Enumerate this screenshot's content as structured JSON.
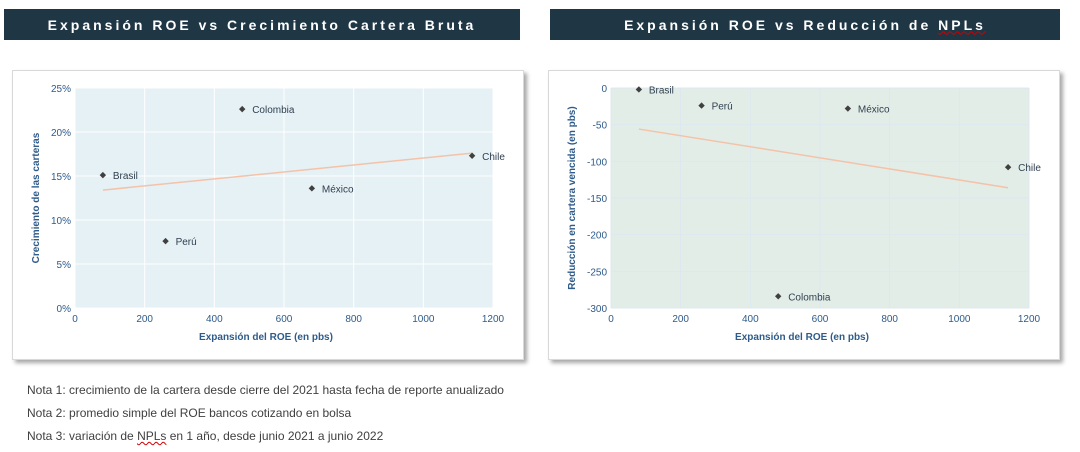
{
  "charts": {
    "left": {
      "title": "Expansión ROE vs Crecimiento Cartera Bruta"
    },
    "right": {
      "title_main": "Expansión ROE vs Reducción de ",
      "title_squiggle": "NPLs"
    }
  },
  "notes": [
    {
      "text": "Nota 1: crecimiento de la cartera desde cierre del 2021 hasta fecha de reporte anualizado"
    },
    {
      "text": "Nota 2: promedio simple del ROE bancos cotizando en bolsa"
    },
    {
      "pre": "Nota 3: variación de ",
      "squiggle": "NPLs",
      "post": " en 1 año, desde junio 2021 a junio 2022"
    }
  ],
  "colors": {
    "banner": "#1f3645",
    "plot_bg_left": "#e6f1f5",
    "plot_bg_right": "#e3ede7",
    "axis_text": "#2e5b8a",
    "point": "#404040",
    "trendline": "#f4c2a8",
    "grid_left": "#ffffff",
    "grid_right": "#dce8f0"
  },
  "chart_data": [
    {
      "type": "scatter",
      "title": "Expansión ROE vs Crecimiento Cartera Bruta",
      "xlabel": "Expansión del ROE (en pbs)",
      "ylabel": "Crecimiento de las carteras",
      "xlim": [
        0,
        1200
      ],
      "ylim": [
        0,
        25
      ],
      "xticks": [
        0,
        200,
        400,
        600,
        800,
        1000,
        1200
      ],
      "yticks": [
        0,
        5,
        10,
        15,
        20,
        25
      ],
      "ytick_labels": [
        "0%",
        "5%",
        "10%",
        "15%",
        "20%",
        "25%"
      ],
      "grid": true,
      "trendline": {
        "x": [
          80,
          1140
        ],
        "y": [
          13.4,
          17.6
        ]
      },
      "points": [
        {
          "label": "Brasil",
          "x": 80,
          "y": 15.1
        },
        {
          "label": "Perú",
          "x": 260,
          "y": 7.6
        },
        {
          "label": "Colombia",
          "x": 480,
          "y": 22.6
        },
        {
          "label": "México",
          "x": 680,
          "y": 13.6
        },
        {
          "label": "Chile",
          "x": 1140,
          "y": 17.3
        }
      ]
    },
    {
      "type": "scatter",
      "title": "Expansión ROE vs Reducción de NPLs",
      "xlabel": "Expansión del ROE (en pbs)",
      "ylabel": "Reducción en cartera vencida (en pbs)",
      "xlim": [
        0,
        1200
      ],
      "ylim": [
        -300,
        0
      ],
      "xticks": [
        0,
        200,
        400,
        600,
        800,
        1000,
        1200
      ],
      "yticks": [
        0,
        -50,
        -100,
        -150,
        -200,
        -250,
        -300
      ],
      "ytick_labels": [
        "0",
        "-50",
        "-100",
        "-150",
        "-200",
        "-250",
        "-300"
      ],
      "grid": true,
      "trendline": {
        "x": [
          80,
          1140
        ],
        "y": [
          -56,
          -136
        ]
      },
      "points": [
        {
          "label": "Brasil",
          "x": 80,
          "y": -2
        },
        {
          "label": "Perú",
          "x": 260,
          "y": -24
        },
        {
          "label": "México",
          "x": 680,
          "y": -28
        },
        {
          "label": "Chile",
          "x": 1140,
          "y": -108
        },
        {
          "label": "Colombia",
          "x": 480,
          "y": -284
        }
      ]
    }
  ]
}
